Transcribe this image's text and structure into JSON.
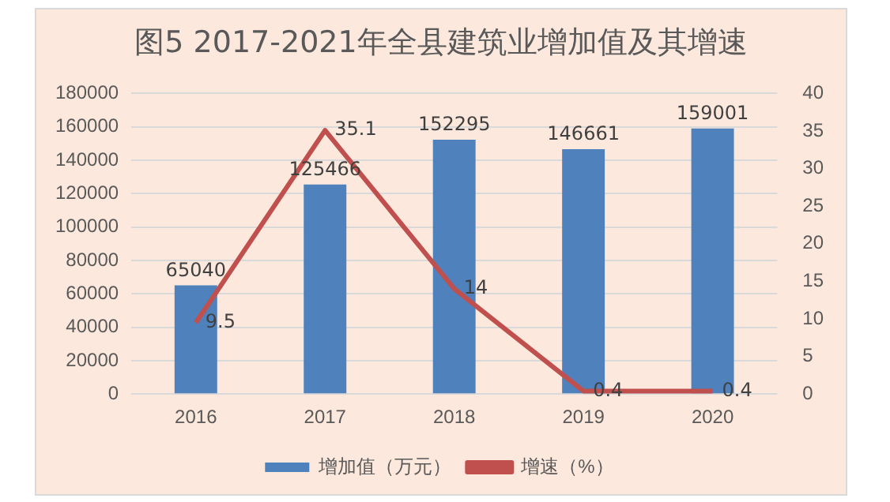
{
  "chart_data": {
    "type": "bar",
    "title": "图5  2017-2021年全县建筑业增加值及其增速",
    "categories": [
      "2016",
      "2017",
      "2018",
      "2019",
      "2020"
    ],
    "series": [
      {
        "name": "增加值（万元）",
        "color": "#4f81bd",
        "values": [
          65040,
          125466,
          152295,
          146661,
          159001
        ]
      },
      {
        "name": "增速（%）",
        "type": "line",
        "axis": "y2",
        "color": "#c0504d",
        "values": [
          9.5,
          35.1,
          14,
          0.4,
          0.4
        ]
      }
    ],
    "ylim": [
      0,
      180000
    ],
    "yticks": [
      0,
      20000,
      40000,
      60000,
      80000,
      100000,
      120000,
      140000,
      160000,
      180000
    ],
    "y2lim": [
      0,
      40
    ],
    "y2ticks": [
      0,
      5,
      10,
      15,
      20,
      25,
      30,
      35,
      40
    ],
    "grid": "y",
    "legend": "bottom",
    "marker": "none",
    "data_labels": true
  }
}
